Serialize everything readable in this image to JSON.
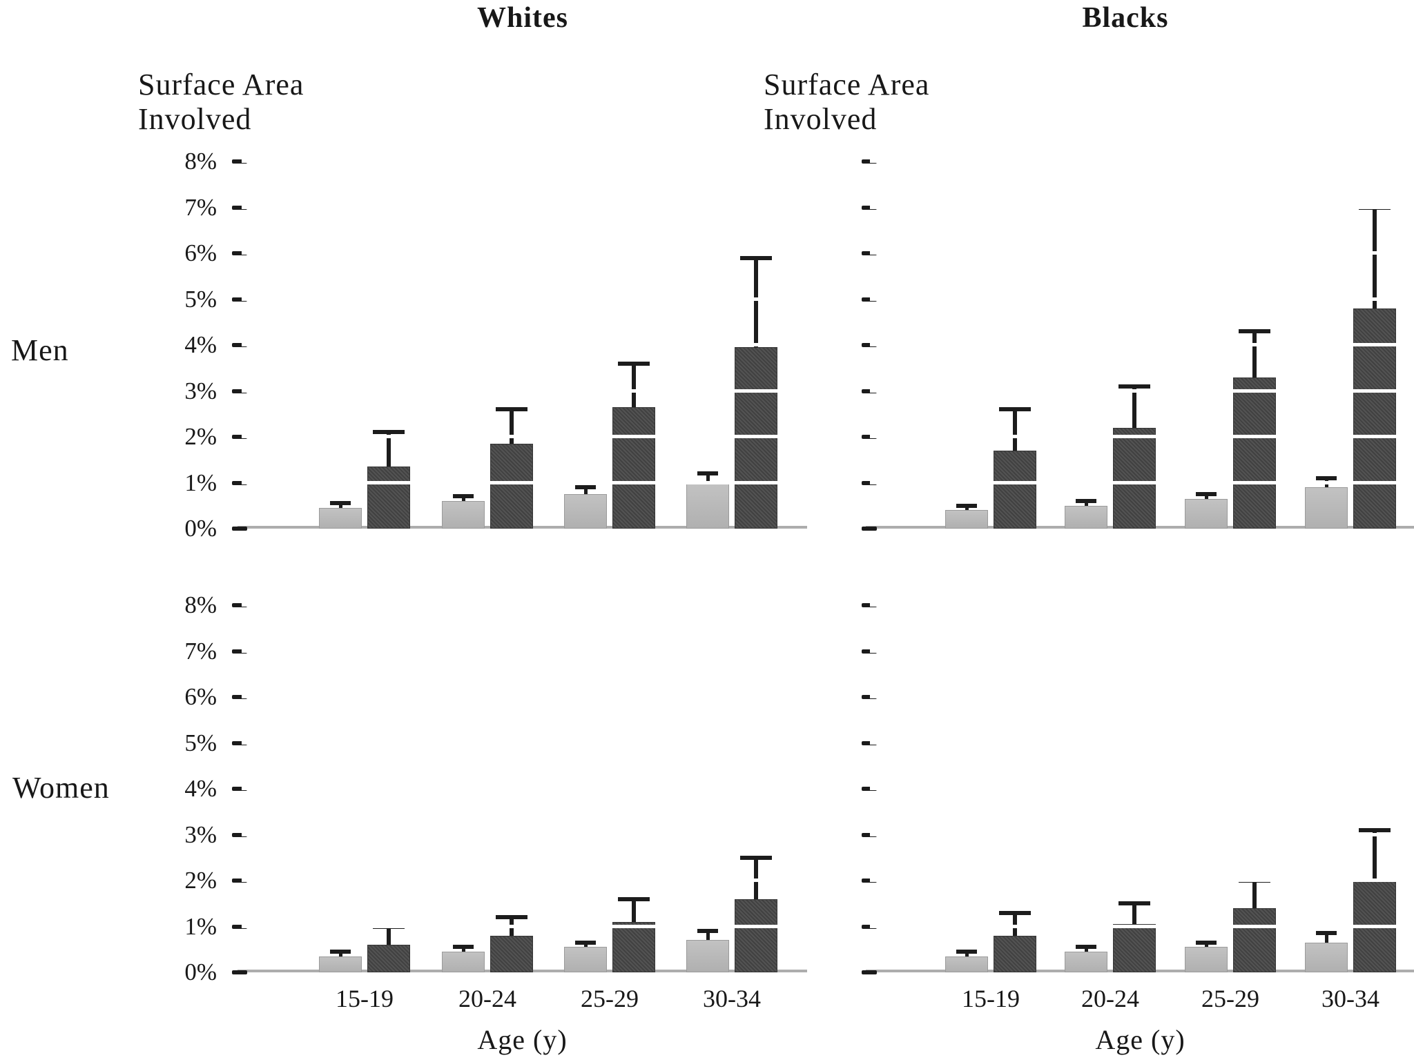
{
  "figure": {
    "column_titles": [
      "Whites",
      "Blacks"
    ],
    "row_labels": [
      "Men",
      "Women"
    ],
    "y_axis_label": [
      "Surface Area",
      "Involved"
    ],
    "x_axis_title": "Age (y)",
    "age_groups": [
      "15-19",
      "20-24",
      "25-29",
      "30-34"
    ],
    "y_tick_labels": [
      "8%",
      "7%",
      "6%",
      "5%",
      "4%",
      "3%",
      "2%",
      "1%",
      "0%"
    ],
    "colors": {
      "light_bar": "#b7b7b7",
      "dark_bar": "#4a4a4a",
      "error_bar": "#1c1c1c",
      "axis_line": "#adadad",
      "gridline_over_bars": "#ffffff",
      "background": "#ffffff",
      "text": "#181818"
    }
  },
  "chart_data": [
    {
      "type": "bar",
      "title": "Whites Men",
      "column": "Whites",
      "row": "Men",
      "categories": [
        "15-19",
        "20-24",
        "25-29",
        "30-34"
      ],
      "series": [
        {
          "name": "light gray bars",
          "color": "#b7b7b7",
          "values": [
            0.45,
            0.6,
            0.75,
            1.0
          ],
          "error_bar_tops": [
            0.55,
            0.7,
            0.9,
            1.2
          ]
        },
        {
          "name": "dark gray bars",
          "color": "#4a4a4a",
          "values": [
            1.35,
            1.85,
            2.65,
            3.95
          ],
          "error_bar_tops": [
            2.1,
            2.6,
            3.6,
            5.9
          ]
        }
      ],
      "ylabel": "Surface Area Involved",
      "xlabel": "Age (y)",
      "ylim": [
        0,
        8
      ],
      "ytick_interval": 1,
      "grid": "white lines over bars at each 1%",
      "legend": "none"
    },
    {
      "type": "bar",
      "title": "Blacks Men",
      "column": "Blacks",
      "row": "Men",
      "categories": [
        "15-19",
        "20-24",
        "25-29",
        "30-34"
      ],
      "series": [
        {
          "name": "light gray bars",
          "color": "#b7b7b7",
          "values": [
            0.4,
            0.5,
            0.65,
            0.9
          ],
          "error_bar_tops": [
            0.5,
            0.6,
            0.75,
            1.1
          ]
        },
        {
          "name": "dark gray bars",
          "color": "#4a4a4a",
          "values": [
            1.7,
            2.2,
            3.3,
            4.8
          ],
          "error_bar_tops": [
            2.6,
            3.1,
            4.3,
            7.0
          ]
        }
      ],
      "ylabel": "Surface Area Involved",
      "xlabel": "Age (y)",
      "ylim": [
        0,
        8
      ],
      "ytick_interval": 1,
      "grid": "white lines over bars at each 1%",
      "legend": "none"
    },
    {
      "type": "bar",
      "title": "Whites Women",
      "column": "Whites",
      "row": "Women",
      "categories": [
        "15-19",
        "20-24",
        "25-29",
        "30-34"
      ],
      "series": [
        {
          "name": "light gray bars",
          "color": "#b7b7b7",
          "values": [
            0.35,
            0.45,
            0.55,
            0.7
          ],
          "error_bar_tops": [
            0.45,
            0.55,
            0.65,
            0.9
          ]
        },
        {
          "name": "dark gray bars",
          "color": "#4a4a4a",
          "values": [
            0.6,
            0.8,
            1.1,
            1.6
          ],
          "error_bar_tops": [
            1.0,
            1.2,
            1.6,
            2.5
          ]
        }
      ],
      "ylabel": "Surface Area Involved",
      "xlabel": "Age (y)",
      "ylim": [
        0,
        8
      ],
      "ytick_interval": 1,
      "grid": "white lines over bars at each 1%",
      "legend": "none"
    },
    {
      "type": "bar",
      "title": "Blacks Women",
      "column": "Blacks",
      "row": "Women",
      "categories": [
        "15-19",
        "20-24",
        "25-29",
        "30-34"
      ],
      "series": [
        {
          "name": "light gray bars",
          "color": "#b7b7b7",
          "values": [
            0.35,
            0.45,
            0.55,
            0.65
          ],
          "error_bar_tops": [
            0.45,
            0.55,
            0.65,
            0.85
          ]
        },
        {
          "name": "dark gray bars",
          "color": "#4a4a4a",
          "values": [
            0.8,
            1.05,
            1.4,
            2.0
          ],
          "error_bar_tops": [
            1.3,
            1.5,
            2.0,
            3.1
          ]
        }
      ],
      "ylabel": "Surface Area Involved",
      "xlabel": "Age (y)",
      "ylim": [
        0,
        8
      ],
      "ytick_interval": 1,
      "grid": "white lines over bars at each 1%",
      "legend": "none"
    }
  ]
}
